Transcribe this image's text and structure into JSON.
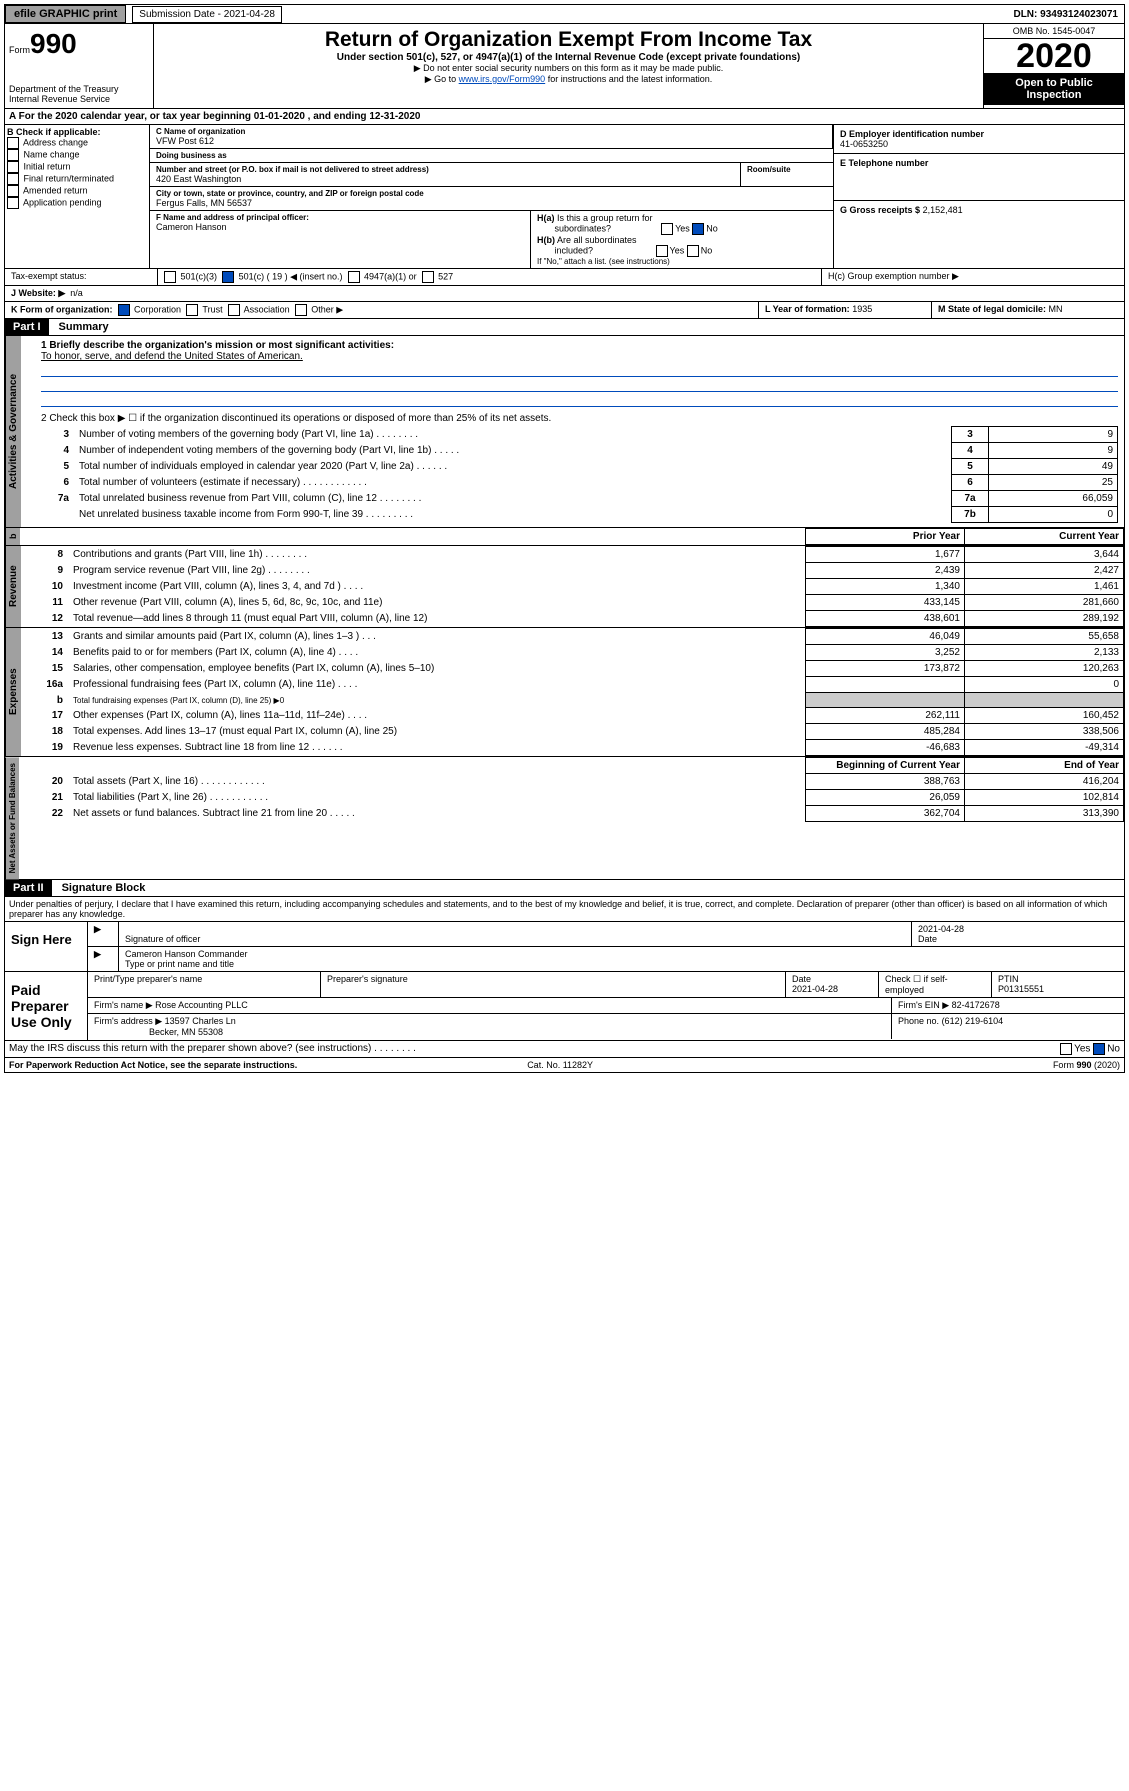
{
  "topbar": {
    "efile": "efile GRAPHIC print",
    "subdate_lbl": "Submission Date - 2021-04-28",
    "dln": "DLN: 93493124023071"
  },
  "header": {
    "form": "990",
    "form_prefix": "Form",
    "dept": "Department of the Treasury\nInternal Revenue Service",
    "title": "Return of Organization Exempt From Income Tax",
    "sub": "Under section 501(c), 527, or 4947(a)(1) of the Internal Revenue Code (except private foundations)",
    "note1": "▶ Do not enter social security numbers on this form as it may be made public.",
    "note2": "▶ Go to www.irs.gov/Form990 for instructions and the latest information.",
    "link": "www.irs.gov/Form990",
    "omb": "OMB No. 1545-0047",
    "year": "2020",
    "public": "Open to Public Inspection"
  },
  "lineA": "A   For the 2020 calendar year, or tax year beginning 01-01-2020    , and ending 12-31-2020",
  "boxB": {
    "title": "B Check if applicable:",
    "items": [
      "Address change",
      "Name change",
      "Initial return",
      "Final return/terminated",
      "Amended return",
      "Application pending"
    ]
  },
  "boxC": {
    "name_lbl": "C Name of organization",
    "name": "VFW Post 612",
    "dba_lbl": "Doing business as",
    "dba": "",
    "street_lbl": "Number and street (or P.O. box if mail is not delivered to street address)",
    "room_lbl": "Room/suite",
    "street": "420 East Washington",
    "room": "",
    "city_lbl": "City or town, state or province, country, and ZIP or foreign postal code",
    "city": "Fergus Falls, MN  56537",
    "officer_lbl": "F  Name and address of principal officer:",
    "officer": "Cameron Hanson"
  },
  "boxD": {
    "lbl": "D Employer identification number",
    "val": "41-0653250"
  },
  "boxE": {
    "lbl": "E Telephone number",
    "val": ""
  },
  "boxG": {
    "lbl": "G Gross receipts $",
    "val": "2,152,481"
  },
  "boxH": {
    "a": "H(a)  Is this a group return for subordinates?",
    "a_yes": "Yes",
    "a_no": "No",
    "b": "H(b)  Are all subordinates included?",
    "b_yes": "Yes",
    "b_no": "No",
    "bnote": "If \"No,\" attach a list. (see instructions)",
    "c": "H(c)  Group exemption number ▶"
  },
  "taxstatus": {
    "lbl": "Tax-exempt status:",
    "c3": "501(c)(3)",
    "c": "501(c) ( 19 ) ◀ (insert no.)",
    "a1": "4947(a)(1) or",
    "s527": "527"
  },
  "boxJ": {
    "lbl": "J   Website: ▶",
    "val": "n/a"
  },
  "boxK": {
    "lbl": "K Form of organization:",
    "corp": "Corporation",
    "trust": "Trust",
    "assoc": "Association",
    "other": "Other ▶"
  },
  "boxL": {
    "lbl": "L Year of formation:",
    "val": "1935"
  },
  "boxM": {
    "lbl": "M State of legal domicile:",
    "val": "MN"
  },
  "part1": {
    "hdr": "Part I",
    "title": "Summary"
  },
  "summary": {
    "q1": "1  Briefly describe the organization's mission or most significant activities:",
    "mission": "To honor, serve, and defend the United States of American.",
    "q2": "2   Check this box ▶ ☐  if the organization discontinued its operations or disposed of more than 25% of its net assets.",
    "lines": [
      {
        "n": "3",
        "t": "Number of voting members of the governing body (Part VI, line 1a)   .    .    .    .    .    .    .    .",
        "b": "3",
        "v": "9"
      },
      {
        "n": "4",
        "t": "Number of independent voting members of the governing body (Part VI, line 1b)    .    .    .     .    .",
        "b": "4",
        "v": "9"
      },
      {
        "n": "5",
        "t": "Total number of individuals employed in calendar year 2020 (Part V, line 2a)    .    .    .    .    .    .",
        "b": "5",
        "v": "49"
      },
      {
        "n": "6",
        "t": "Total number of volunteers (estimate if necessary)    .    .    .    .    .    .    .    .    .    .    .    .",
        "b": "6",
        "v": "25"
      },
      {
        "n": "7a",
        "t": "Total unrelated business revenue from Part VIII, column (C), line 12    .    .    .    .    .    .    .    .",
        "b": "7a",
        "v": "66,059"
      },
      {
        "n": "",
        "t": "Net unrelated business taxable income from Form 990-T, line 39    .    .    .    .    .    .    .    .    .",
        "b": "7b",
        "v": "0"
      }
    ]
  },
  "revexp": {
    "hdr_prior": "Prior Year",
    "hdr_curr": "Current Year",
    "rev": [
      {
        "n": "8",
        "t": "Contributions and grants (Part VIII, line 1h)    .    .    .    .    .    .    .    .",
        "p": "1,677",
        "c": "3,644"
      },
      {
        "n": "9",
        "t": "Program service revenue (Part VIII, line 2g)    .    .    .    .    .    .    .    .",
        "p": "2,439",
        "c": "2,427"
      },
      {
        "n": "10",
        "t": "Investment income (Part VIII, column (A), lines 3, 4, and 7d )    .    .    .    .",
        "p": "1,340",
        "c": "1,461"
      },
      {
        "n": "11",
        "t": "Other revenue (Part VIII, column (A), lines 5, 6d, 8c, 9c, 10c, and 11e)",
        "p": "433,145",
        "c": "281,660"
      },
      {
        "n": "12",
        "t": "Total revenue—add lines 8 through 11 (must equal Part VIII, column (A), line 12)",
        "p": "438,601",
        "c": "289,192"
      }
    ],
    "exp": [
      {
        "n": "13",
        "t": "Grants and similar amounts paid (Part IX, column (A), lines 1–3 )    .    .    .",
        "p": "46,049",
        "c": "55,658"
      },
      {
        "n": "14",
        "t": "Benefits paid to or for members (Part IX, column (A), line 4)    .    .    .    .",
        "p": "3,252",
        "c": "2,133"
      },
      {
        "n": "15",
        "t": "Salaries, other compensation, employee benefits (Part IX, column (A), lines 5–10)",
        "p": "173,872",
        "c": "120,263"
      },
      {
        "n": "16a",
        "t": "Professional fundraising fees (Part IX, column (A), line 11e)    .    .    .    .",
        "p": "",
        "c": "0"
      },
      {
        "n": "b",
        "t": "Total fundraising expenses (Part IX, column (D), line 25) ▶0",
        "p": "",
        "c": "",
        "grey": true
      },
      {
        "n": "17",
        "t": "Other expenses (Part IX, column (A), lines 11a–11d, 11f–24e)    .    .    .    .",
        "p": "262,111",
        "c": "160,452"
      },
      {
        "n": "18",
        "t": "Total expenses. Add lines 13–17 (must equal Part IX, column (A), line 25)",
        "p": "485,284",
        "c": "338,506"
      },
      {
        "n": "19",
        "t": "Revenue less expenses. Subtract line 18 from line 12    .    .    .    .    .    .",
        "p": "-46,683",
        "c": "-49,314"
      }
    ],
    "hdr_beg": "Beginning of Current Year",
    "hdr_end": "End of Year",
    "net": [
      {
        "n": "20",
        "t": "Total assets (Part X, line 16)    .    .    .    .    .    .    .    .    .    .    .    .",
        "p": "388,763",
        "c": "416,204"
      },
      {
        "n": "21",
        "t": "Total liabilities (Part X, line 26)    .    .    .    .    .    .    .    .    .    .    .",
        "p": "26,059",
        "c": "102,814"
      },
      {
        "n": "22",
        "t": "Net assets or fund balances. Subtract line 21 from line 20    .    .    .    .    .",
        "p": "362,704",
        "c": "313,390"
      }
    ]
  },
  "part2": {
    "hdr": "Part II",
    "title": "Signature Block"
  },
  "perjury": "Under penalties of perjury, I declare that I have examined this return, including accompanying schedules and statements, and to the best of my knowledge and belief, it is true, correct, and complete. Declaration of preparer (other than officer) is based on all information of which preparer has any knowledge.",
  "sign": {
    "here": "Sign Here",
    "sig_lbl": "Signature of officer",
    "date": "2021-04-28",
    "date_lbl": "Date",
    "name": "Cameron Hanson  Commander",
    "name_lbl": "Type or print name and title"
  },
  "prep": {
    "title": "Paid Preparer Use Only",
    "pn_lbl": "Print/Type preparer's name",
    "psig_lbl": "Preparer's signature",
    "pdate_lbl": "Date",
    "pdate": "2021-04-28",
    "self_lbl": "Check ☐ if self-employed",
    "ptin_lbl": "PTIN",
    "ptin": "P01315551",
    "firm_lbl": "Firm's name    ▶",
    "firm": "Rose Accounting PLLC",
    "ein_lbl": "Firm's EIN ▶",
    "ein": "82-4172678",
    "addr_lbl": "Firm's address ▶",
    "addr": "13597 Charles Ln",
    "addr2": "Becker, MN  55308",
    "phone_lbl": "Phone no.",
    "phone": "(612) 219-6104"
  },
  "discuss": "May the IRS discuss this return with the preparer shown above? (see instructions)    .    .    .    .    .    .    .    .",
  "discuss_yes": "Yes",
  "discuss_no": "No",
  "footer": {
    "l": "For Paperwork Reduction Act Notice, see the separate instructions.",
    "c": "Cat. No. 11282Y",
    "r": "Form 990 (2020)"
  },
  "vtabs": {
    "gov": "Activities & Governance",
    "rev": "Revenue",
    "exp": "Expenses",
    "net": "Net Assets or Fund Balances"
  }
}
